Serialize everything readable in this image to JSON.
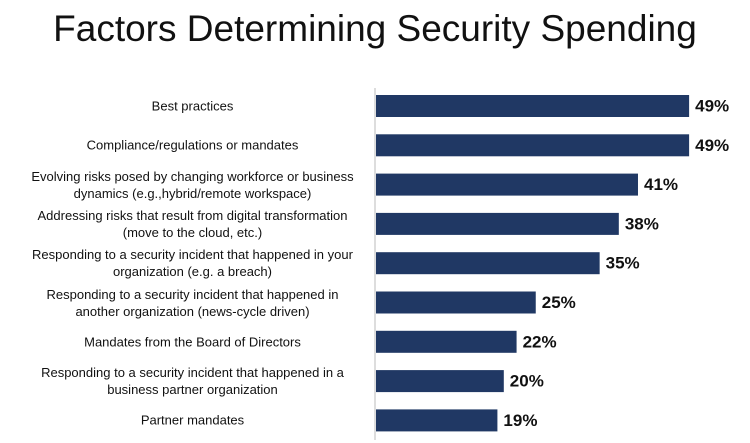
{
  "chart_data": {
    "type": "bar",
    "orientation": "horizontal",
    "title": "Factors Determining Security Spending",
    "categories": [
      "Best practices",
      "Compliance/regulations or mandates",
      "Evolving risks posed by changing workforce or business dynamics (e.g.,hybrid/remote workspace)",
      "Addressing risks that result from digital transformation (move to the cloud, etc.)",
      "Responding to a security incident that happened in your organization (e.g. a breach)",
      "Responding to a security incident that happened in another organization (news-cycle driven)",
      "Mandates from the Board of Directors",
      "Responding to a security incident that happened in a business partner organization",
      "Partner mandates"
    ],
    "values": [
      49,
      49,
      41,
      38,
      35,
      25,
      22,
      20,
      19
    ],
    "value_labels": [
      "49%",
      "49%",
      "41%",
      "38%",
      "35%",
      "25%",
      "22%",
      "20%",
      "19%"
    ],
    "color": "#203864"
  }
}
